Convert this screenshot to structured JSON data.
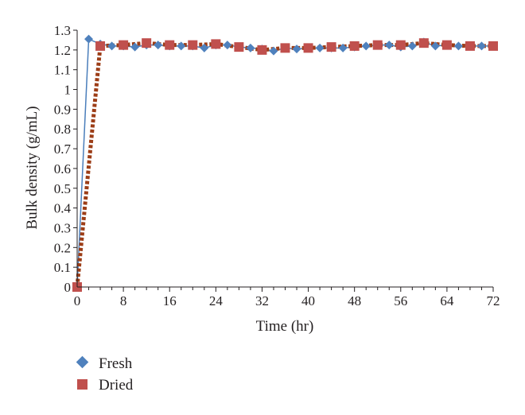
{
  "chart_data": {
    "type": "line",
    "xlabel": "Time (hr)",
    "ylabel": "Bulk density (g/mL)",
    "xlim": [
      0,
      72
    ],
    "ylim": [
      0,
      1.3
    ],
    "xticks": [
      0,
      8,
      16,
      24,
      32,
      40,
      48,
      56,
      64,
      72
    ],
    "yticks": [
      0,
      0.1,
      0.2,
      0.3,
      0.4,
      0.5,
      0.6,
      0.7,
      0.8,
      0.9,
      1,
      1.1,
      1.2,
      1.3
    ],
    "xtick_labels": [
      "0",
      "8",
      "16",
      "24",
      "32",
      "40",
      "48",
      "56",
      "64",
      "72"
    ],
    "ytick_labels": [
      "0",
      "0.1",
      "0.2",
      "0.3",
      "0.4",
      "0.5",
      "0.6",
      "0.7",
      "0.8",
      "0.9",
      "1",
      "1.1",
      "1.2",
      "1.3"
    ],
    "grid": false,
    "legend_position": "bottom-left",
    "series": [
      {
        "name": "Fresh",
        "marker": "diamond",
        "line": "solid",
        "color": "#4f81bd",
        "line_color": "#4a7ebb",
        "x": [
          0,
          2,
          4,
          6,
          8,
          10,
          12,
          14,
          16,
          18,
          20,
          22,
          24,
          26,
          28,
          30,
          32,
          34,
          36,
          38,
          40,
          42,
          44,
          46,
          48,
          50,
          52,
          54,
          56,
          58,
          60,
          62,
          64,
          66,
          68,
          70,
          72
        ],
        "y": [
          0,
          1.255,
          1.23,
          1.22,
          1.22,
          1.215,
          1.225,
          1.225,
          1.22,
          1.22,
          1.22,
          1.21,
          1.225,
          1.225,
          1.215,
          1.21,
          1.205,
          1.195,
          1.21,
          1.205,
          1.21,
          1.21,
          1.21,
          1.21,
          1.215,
          1.22,
          1.225,
          1.225,
          1.215,
          1.22,
          1.24,
          1.22,
          1.225,
          1.22,
          1.22,
          1.22,
          1.22
        ]
      },
      {
        "name": "Dried",
        "marker": "square",
        "line": "dotted",
        "color": "#c0504d",
        "line_color": "#9c3d17",
        "x": [
          0,
          4,
          8,
          12,
          16,
          20,
          24,
          28,
          32,
          36,
          40,
          44,
          48,
          52,
          56,
          60,
          64,
          68,
          72
        ],
        "y": [
          0,
          1.22,
          1.225,
          1.235,
          1.225,
          1.225,
          1.23,
          1.215,
          1.2,
          1.21,
          1.21,
          1.215,
          1.22,
          1.225,
          1.225,
          1.235,
          1.225,
          1.22,
          1.22
        ]
      }
    ]
  }
}
